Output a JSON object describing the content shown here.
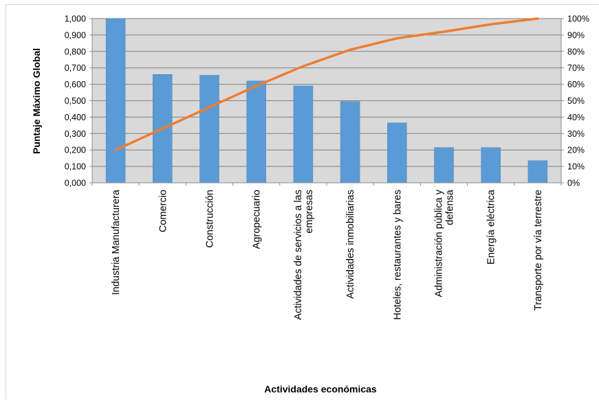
{
  "chart_data": {
    "type": "bar",
    "categories": [
      [
        "Industria Manufacturera"
      ],
      [
        "Comercio"
      ],
      [
        "Construcción"
      ],
      [
        "Agropecuario"
      ],
      [
        "Actividades de servicios a las",
        "empresas"
      ],
      [
        "Actividades inmobiliarias"
      ],
      [
        "Hoteles, restaurantes y bares"
      ],
      [
        "Administración pública y",
        "defensa"
      ],
      [
        "Energía eléctrica"
      ],
      [
        "Transporte por vía terrestre"
      ]
    ],
    "series": [
      {
        "type": "bar",
        "values": [
          1.0,
          0.66,
          0.655,
          0.62,
          0.59,
          0.495,
          0.365,
          0.215,
          0.215,
          0.135
        ],
        "color": "#5b9bd5",
        "axis": "left"
      },
      {
        "type": "line",
        "values": [
          0.2,
          0.33,
          0.46,
          0.59,
          0.71,
          0.81,
          0.88,
          0.92,
          0.965,
          1.0
        ],
        "color": "#ed7d31",
        "axis": "right"
      }
    ],
    "ylabel": "Puntaje Máximo Global",
    "xlabel": "Actividades económicas",
    "ylim": [
      0,
      1
    ],
    "y_ticks": [
      0,
      0.1,
      0.2,
      0.3,
      0.4,
      0.5,
      0.6,
      0.7,
      0.8,
      0.9,
      1.0
    ],
    "y_tick_labels": [
      "0,000",
      "0,100",
      "0,200",
      "0,300",
      "0,400",
      "0,500",
      "0,600",
      "0,700",
      "0,800",
      "0,900",
      "1,000"
    ],
    "y2lim": [
      0,
      1
    ],
    "y2_tick_labels": [
      "0%",
      "10%",
      "20%",
      "30%",
      "40%",
      "50%",
      "60%",
      "70%",
      "80%",
      "90%",
      "100%"
    ],
    "grid": true,
    "plot_background": "#d9d9d9",
    "gridline_color": "#7f7f7f"
  }
}
